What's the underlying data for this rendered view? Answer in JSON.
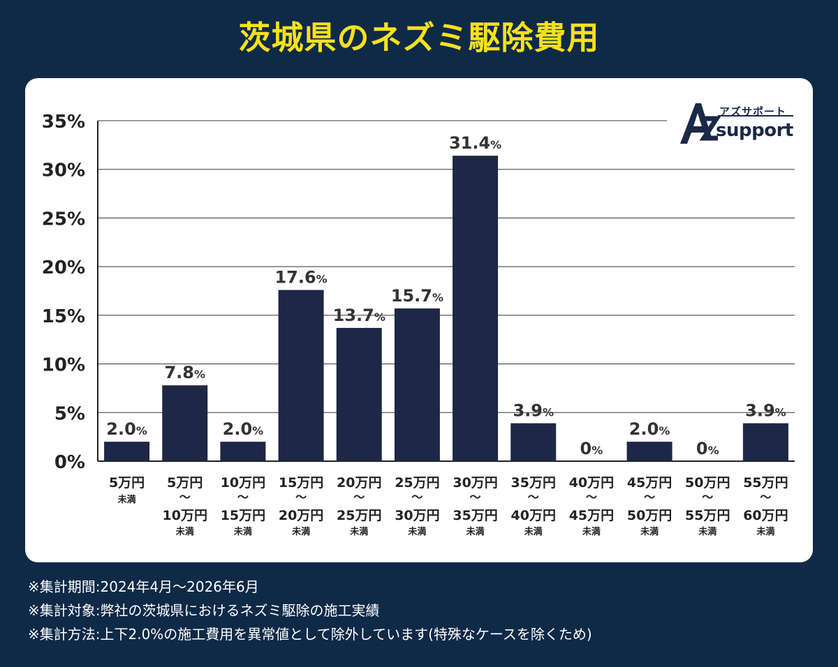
{
  "title": "茨城県のネズミ駆除費用",
  "logo": {
    "kana": "アズサポート",
    "word": "support",
    "mark": "AZ"
  },
  "notes": [
    "※集計期間:2024年4月〜2026年6月",
    "※集計対象:弊社の茨城県におけるネズミ駆除の施工実績",
    "※集計方法:上下2.0%の施工費用を異常値として除外しています(特殊なケースを除くため)"
  ],
  "colors": {
    "background": "#0f2a47",
    "title": "#f5e11c",
    "bar": "#1f2747",
    "text": "#333333"
  },
  "chart_data": {
    "type": "bar",
    "title": "茨城県のネズミ駆除費用",
    "ylim": [
      0,
      35
    ],
    "yticks": [
      "0%",
      "5%",
      "10%",
      "15%",
      "20%",
      "25%",
      "30%",
      "35%"
    ],
    "ytick_values": [
      0,
      5,
      10,
      15,
      20,
      25,
      30,
      35
    ],
    "grid": true,
    "value_unit": "%",
    "categories": [
      {
        "low": "5万円",
        "high": "",
        "suffix": "未満"
      },
      {
        "low": "5万円",
        "high": "10万円",
        "suffix": "未満"
      },
      {
        "low": "10万円",
        "high": "15万円",
        "suffix": "未満"
      },
      {
        "low": "15万円",
        "high": "20万円",
        "suffix": "未満"
      },
      {
        "low": "20万円",
        "high": "25万円",
        "suffix": "未満"
      },
      {
        "low": "25万円",
        "high": "30万円",
        "suffix": "未満"
      },
      {
        "low": "30万円",
        "high": "35万円",
        "suffix": "未満"
      },
      {
        "low": "35万円",
        "high": "40万円",
        "suffix": "未満"
      },
      {
        "low": "40万円",
        "high": "45万円",
        "suffix": "未満"
      },
      {
        "low": "45万円",
        "high": "50万円",
        "suffix": "未満"
      },
      {
        "low": "50万円",
        "high": "55万円",
        "suffix": "未満"
      },
      {
        "low": "55万円",
        "high": "60万円",
        "suffix": "未満"
      }
    ],
    "values": [
      2.0,
      7.8,
      2.0,
      17.6,
      13.7,
      15.7,
      31.4,
      3.9,
      0,
      2.0,
      0,
      3.9
    ],
    "labels": [
      "2.0",
      "7.8",
      "2.0",
      "17.6",
      "13.7",
      "15.7",
      "31.4",
      "3.9",
      "0",
      "2.0",
      "0",
      "3.9"
    ]
  }
}
